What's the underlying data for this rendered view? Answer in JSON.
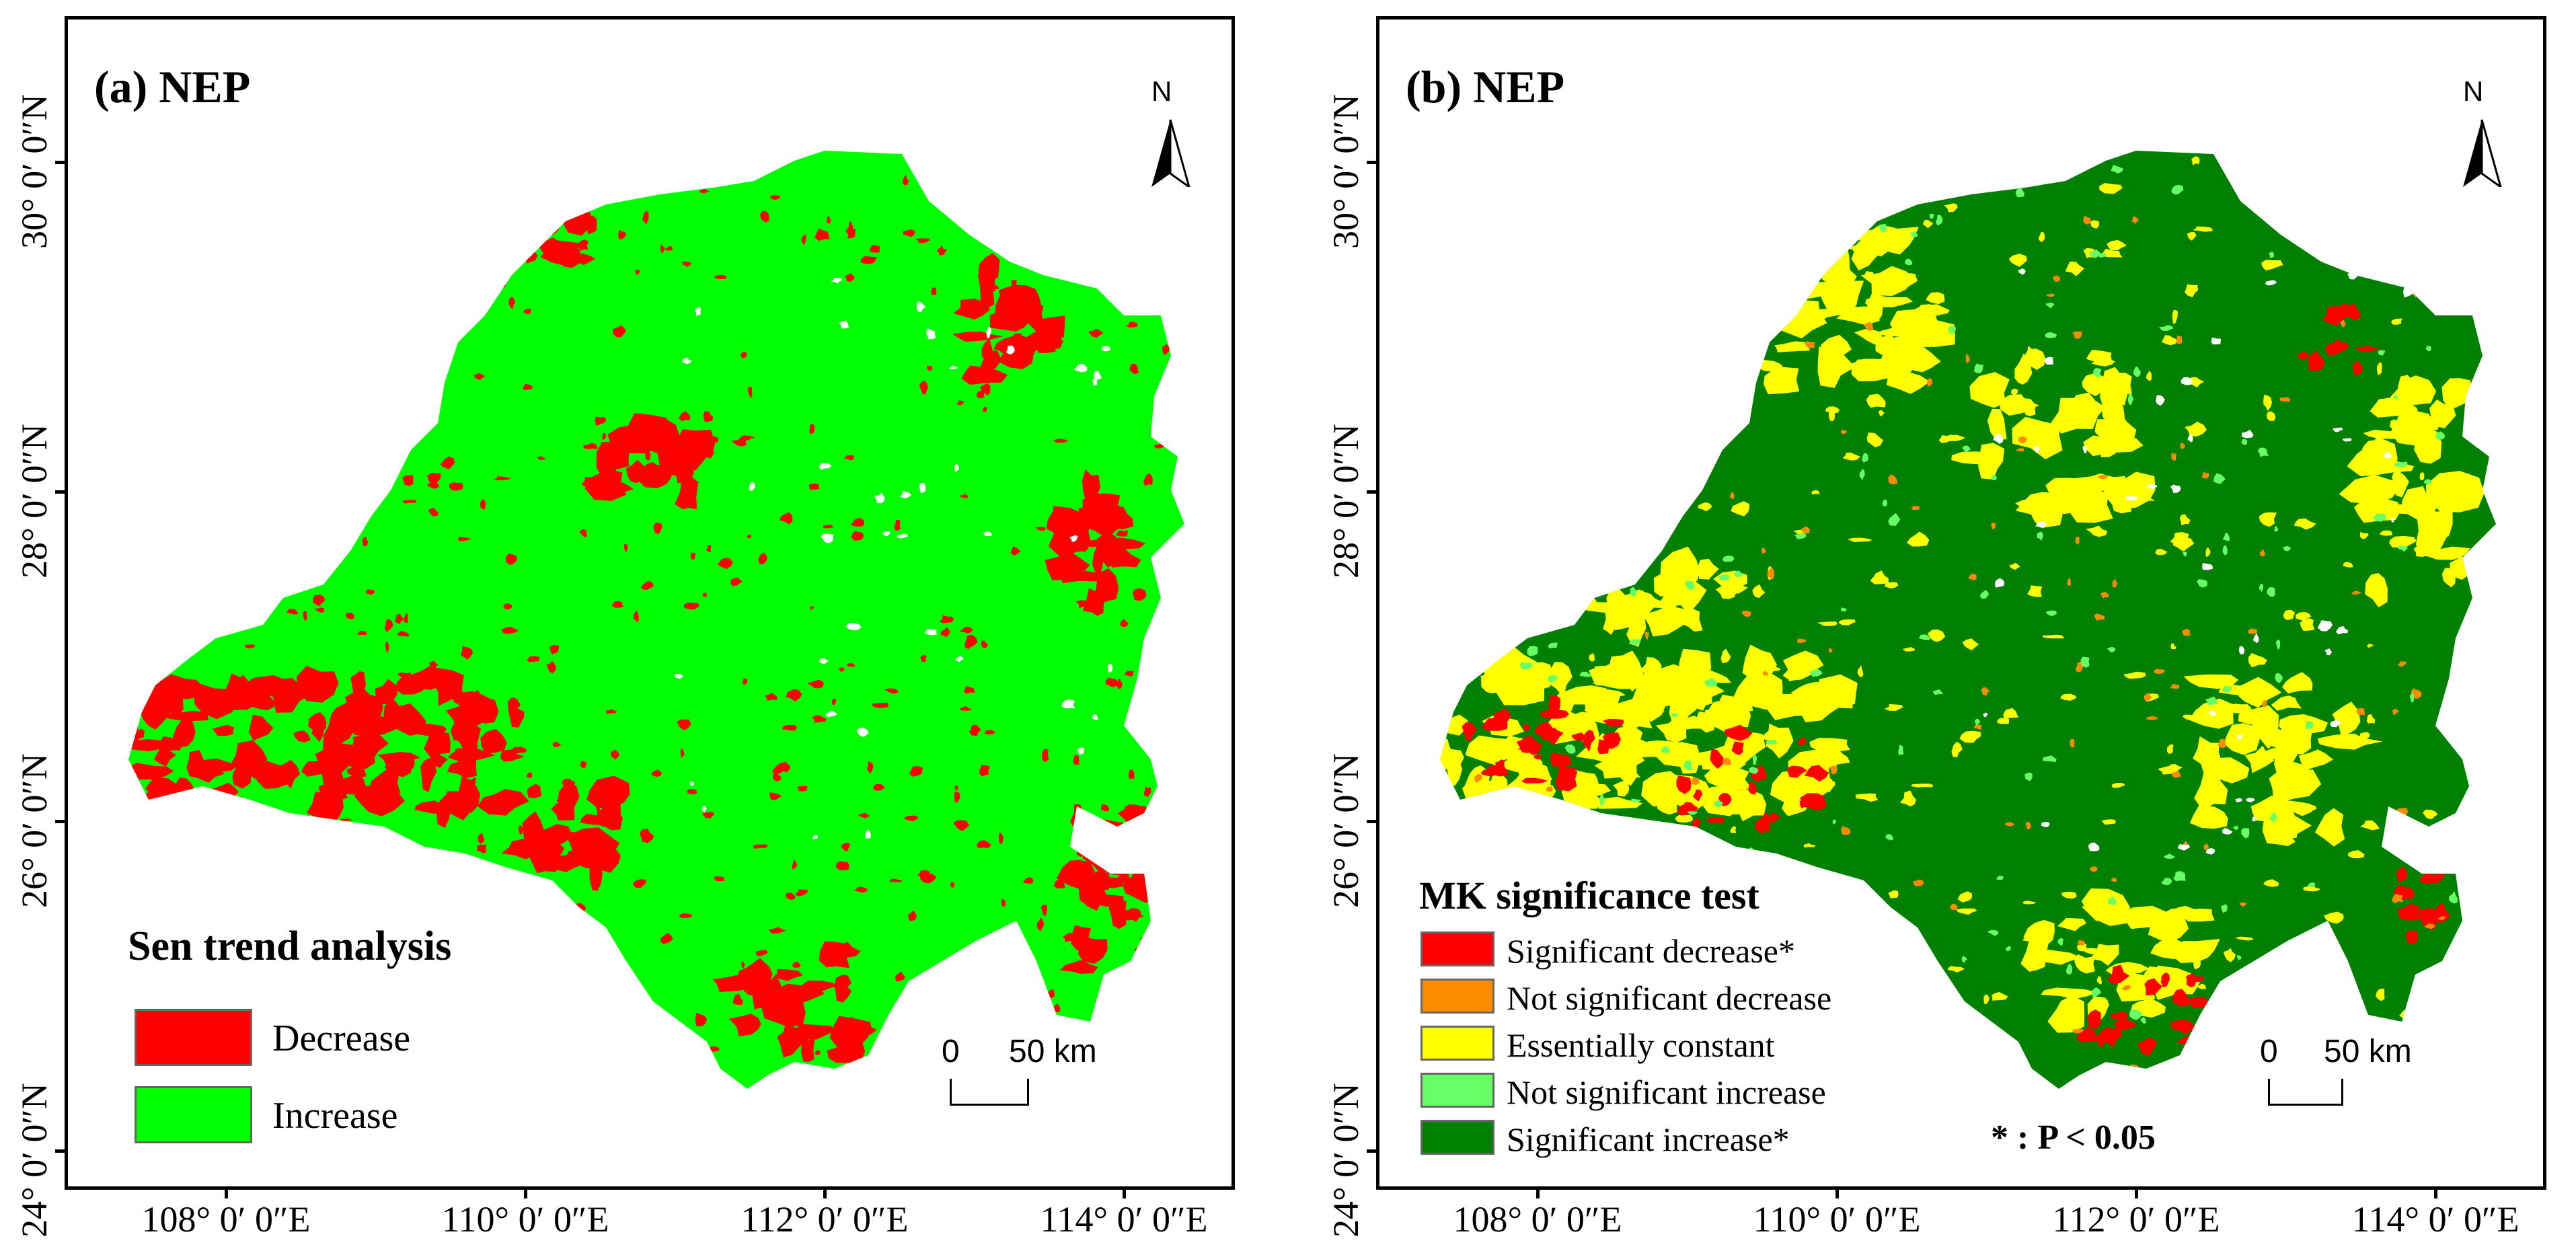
{
  "panels": [
    {
      "title": "(a) NEP",
      "north": "N",
      "legend": {
        "title": "Sen trend analysis",
        "items": [
          {
            "label": "Decrease",
            "color": "#ff0000"
          },
          {
            "label": "Increase",
            "color": "#00ff00"
          }
        ]
      },
      "scale": {
        "zero": "0",
        "label": "50 km"
      },
      "note": ""
    },
    {
      "title": "(b) NEP",
      "north": "N",
      "legend": {
        "title": "MK significance test",
        "items": [
          {
            "label": "Significant decrease*",
            "color": "#ff0000"
          },
          {
            "label": "Not significant decrease",
            "color": "#ff8c00"
          },
          {
            "label": "Essentially constant",
            "color": "#ffff00"
          },
          {
            "label": "Not significant increase",
            "color": "#66ff66"
          },
          {
            "label": "Significant increase*",
            "color": "#008000"
          }
        ]
      },
      "scale": {
        "zero": "0",
        "label": "50 km"
      },
      "note": "* : P < 0.05"
    }
  ],
  "latitudes": [
    "30° 0′ 0″N",
    "28° 0′ 0″N",
    "26° 0′ 0″N",
    "24° 0′ 0″N"
  ],
  "longitudes": [
    "108° 0′ 0″E",
    "110° 0′ 0″E",
    "112° 0′ 0″E",
    "114° 0′ 0″E"
  ],
  "colors": {
    "water": "#ffffff",
    "frame": "#000000"
  }
}
